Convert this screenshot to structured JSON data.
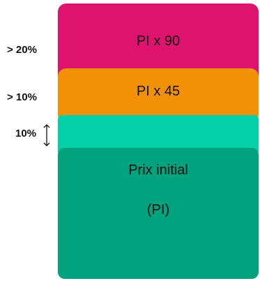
{
  "tiers": {
    "pink": {
      "label": "PI x 90",
      "color": "#e0126f"
    },
    "orange": {
      "label": "PI x 45",
      "color": "#f29105"
    },
    "teal": {
      "label": "",
      "color": "#05d1a8"
    },
    "green": {
      "label_line1": "Prix initial",
      "label_line2": "(PI)",
      "color": "#00a37e"
    }
  },
  "thresholds": {
    "above20": "> 20%",
    "above10": "> 10%",
    "ten": "10%"
  }
}
